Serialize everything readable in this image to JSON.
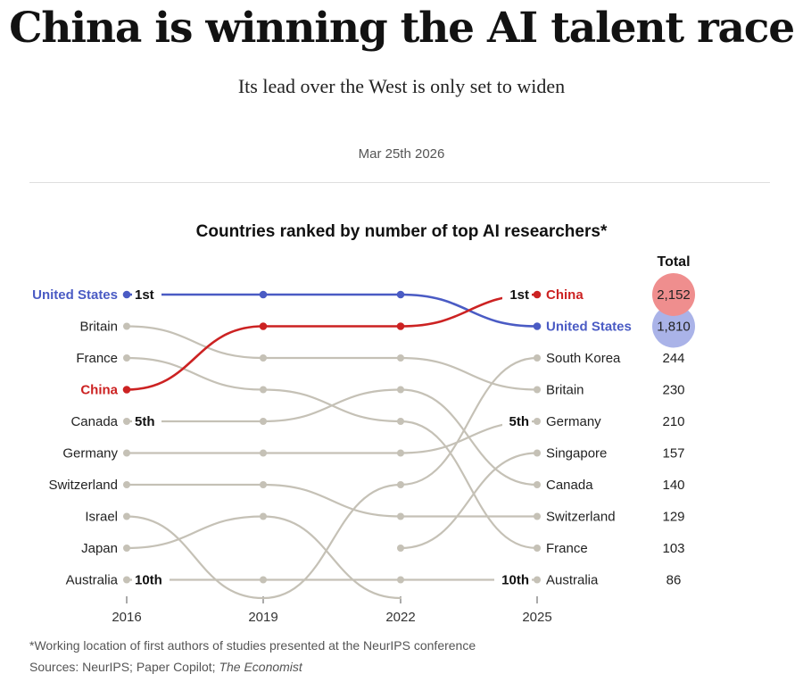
{
  "headline": "China is winning the AI talent race",
  "subtitle": "Its lead over the West is only set to widen",
  "date": "Mar 25th 2026",
  "chart_data": {
    "type": "bump",
    "title": "Countries ranked by number of top AI researchers*",
    "years": [
      "2016",
      "2019",
      "2022",
      "2025"
    ],
    "total_header": "Total",
    "series": [
      {
        "name": "United States",
        "ranks": [
          1,
          1,
          1,
          2
        ],
        "highlight": "#4a5bc4",
        "total": "1,810",
        "bubble": "#aab3e8"
      },
      {
        "name": "China",
        "ranks": [
          4,
          2,
          2,
          1
        ],
        "highlight": "#cc2222",
        "total": "2,152",
        "bubble": "#ef8e8e"
      },
      {
        "name": "Britain",
        "ranks": [
          2,
          3,
          3,
          4
        ],
        "total": "230"
      },
      {
        "name": "France",
        "ranks": [
          3,
          4,
          5,
          9
        ],
        "total": "103"
      },
      {
        "name": "Canada",
        "ranks": [
          5,
          5,
          4,
          7
        ],
        "total": "140"
      },
      {
        "name": "Germany",
        "ranks": [
          6,
          6,
          6,
          5
        ],
        "total": "210"
      },
      {
        "name": "Switzerland",
        "ranks": [
          7,
          7,
          8,
          8
        ],
        "total": "129"
      },
      {
        "name": "Israel",
        "ranks": [
          8,
          11,
          null,
          null
        ]
      },
      {
        "name": "Japan",
        "ranks": [
          9,
          8,
          11,
          null
        ]
      },
      {
        "name": "Australia",
        "ranks": [
          10,
          10,
          10,
          10
        ],
        "total": "86"
      },
      {
        "name": "South Korea",
        "ranks": [
          null,
          11,
          7,
          3
        ],
        "total": "244"
      },
      {
        "name": "Singapore",
        "ranks": [
          null,
          null,
          9,
          6
        ],
        "total": "157"
      }
    ],
    "rank_labels": [
      {
        "text": "1st",
        "rank": 1,
        "year_index": 0,
        "side": "right"
      },
      {
        "text": "5th",
        "rank": 5,
        "year_index": 0,
        "side": "right"
      },
      {
        "text": "10th",
        "rank": 10,
        "year_index": 0,
        "side": "right"
      },
      {
        "text": "1st",
        "rank": 1,
        "year_index": 3,
        "side": "left"
      },
      {
        "text": "5th",
        "rank": 5,
        "year_index": 3,
        "side": "left"
      },
      {
        "text": "10th",
        "rank": 10,
        "year_index": 3,
        "side": "left"
      }
    ],
    "line_color": "#c5c1b6"
  },
  "footnote": "*Working location of first authors of studies presented at the NeurIPS conference",
  "sources_prefix": "Sources: NeurIPS; Paper Copilot; ",
  "sources_italic": "The Economist"
}
